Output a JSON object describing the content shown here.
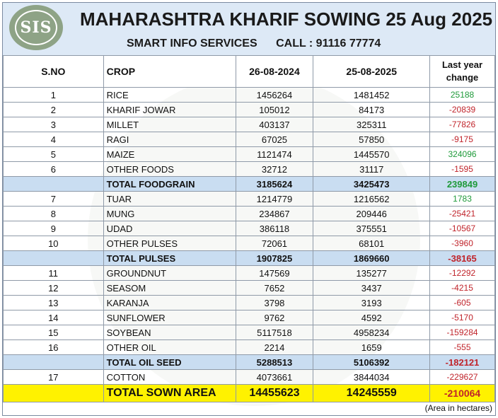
{
  "header": {
    "logo_text": "SIS",
    "title": "MAHARASHTRA KHARIF SOWING 25 Aug 2025",
    "company": "SMART INFO SERVICES",
    "call": "CALL : 91116 77774"
  },
  "table": {
    "headers": {
      "sno": "S.NO",
      "crop": "CROP",
      "date1": "26-08-2024",
      "date2": "25-08-2025",
      "change_line1": "Last year",
      "change_line2": "change"
    },
    "rows": [
      {
        "sno": "1",
        "crop": "RICE",
        "v2024": "1456264",
        "v2025": "1481452",
        "change": "25188"
      },
      {
        "sno": "2",
        "crop": "KHARIF JOWAR",
        "v2024": "105012",
        "v2025": "84173",
        "change": "-20839"
      },
      {
        "sno": "3",
        "crop": "MILLET",
        "v2024": "403137",
        "v2025": "325311",
        "change": "-77826"
      },
      {
        "sno": "4",
        "crop": "RAGI",
        "v2024": "67025",
        "v2025": "57850",
        "change": "-9175"
      },
      {
        "sno": "5",
        "crop": "MAIZE",
        "v2024": "1121474",
        "v2025": "1445570",
        "change": "324096"
      },
      {
        "sno": "6",
        "crop": "OTHER FOODS",
        "v2024": "32712",
        "v2025": "31117",
        "change": "-1595"
      },
      {
        "sno": "",
        "crop": "TOTAL FOODGRAIN",
        "v2024": "3185624",
        "v2025": "3425473",
        "change": "239849"
      },
      {
        "sno": "7",
        "crop": "TUAR",
        "v2024": "1214779",
        "v2025": "1216562",
        "change": "1783"
      },
      {
        "sno": "8",
        "crop": "MUNG",
        "v2024": "234867",
        "v2025": "209446",
        "change": "-25421"
      },
      {
        "sno": "9",
        "crop": "UDAD",
        "v2024": "386118",
        "v2025": "375551",
        "change": "-10567"
      },
      {
        "sno": "10",
        "crop": "OTHER PULSES",
        "v2024": "72061",
        "v2025": "68101",
        "change": "-3960"
      },
      {
        "sno": "",
        "crop": "TOTAL PULSES",
        "v2024": "1907825",
        "v2025": "1869660",
        "change": "-38165"
      },
      {
        "sno": "11",
        "crop": "GROUNDNUT",
        "v2024": "147569",
        "v2025": "135277",
        "change": "-12292"
      },
      {
        "sno": "12",
        "crop": "SEASOM",
        "v2024": "7652",
        "v2025": "3437",
        "change": "-4215"
      },
      {
        "sno": "13",
        "crop": "KARANJA",
        "v2024": "3798",
        "v2025": "3193",
        "change": "-605"
      },
      {
        "sno": "14",
        "crop": "SUNFLOWER",
        "v2024": "9762",
        "v2025": "4592",
        "change": "-5170"
      },
      {
        "sno": "15",
        "crop": "SOYBEAN",
        "v2024": "5117518",
        "v2025": "4958234",
        "change": "-159284"
      },
      {
        "sno": "16",
        "crop": "OTHER OIL",
        "v2024": "2214",
        "v2025": "1659",
        "change": "-555"
      },
      {
        "sno": "",
        "crop": "TOTAL OIL SEED",
        "v2024": "5288513",
        "v2025": "5106392",
        "change": "-182121"
      },
      {
        "sno": "17",
        "crop": "COTTON",
        "v2024": "4073661",
        "v2025": "3844034",
        "change": "-229627"
      },
      {
        "sno": "",
        "crop": "TOTAL SOWN AREA",
        "v2024": "14455623",
        "v2025": "14245559",
        "change": "-210064"
      }
    ]
  },
  "footer": {
    "note": "(Area in hectares)"
  },
  "colors": {
    "header_bg": "#dde9f6",
    "total_bg": "#c9ddf1",
    "grand_bg": "#fff200",
    "positive": "#1f9a3a",
    "negative": "#c0242b"
  }
}
